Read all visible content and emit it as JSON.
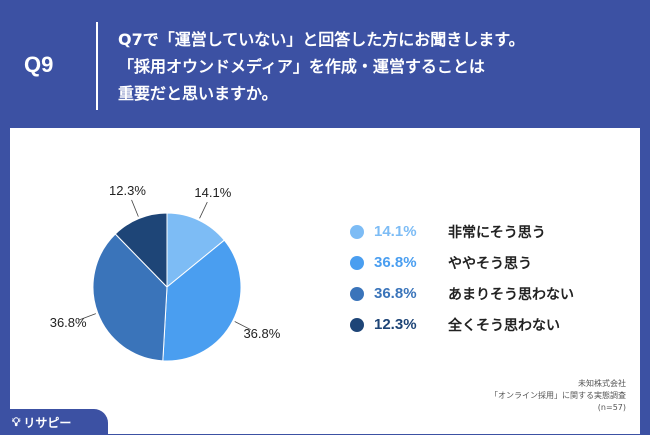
{
  "header": {
    "q_number": "Q9",
    "question_lines": [
      "Q7で「運営していない」と回答した方にお聞きします。",
      "「採用オウンドメディア」を作成・運営することは",
      "重要だと思いますか。"
    ]
  },
  "chart_data": {
    "type": "pie",
    "categories": [
      "非常にそう思う",
      "ややそう思う",
      "あまりそう思わない",
      "全くそう思わない"
    ],
    "values": [
      14.1,
      36.8,
      36.8,
      12.3
    ],
    "labels": [
      "14.1%",
      "36.8%",
      "36.8%",
      "12.3%"
    ],
    "colors": [
      "#7dbcf5",
      "#4a9ef0",
      "#3a74ba",
      "#1e4577"
    ],
    "start_angle": "12 o'clock",
    "direction": "clockwise",
    "legend_position": "right"
  },
  "source": {
    "lines": [
      "未知株式会社",
      "「オンライン採用」に関する実態調査",
      "(n=57)"
    ]
  },
  "logo": {
    "icon": "lightbulb-icon",
    "text": "リサピー"
  }
}
